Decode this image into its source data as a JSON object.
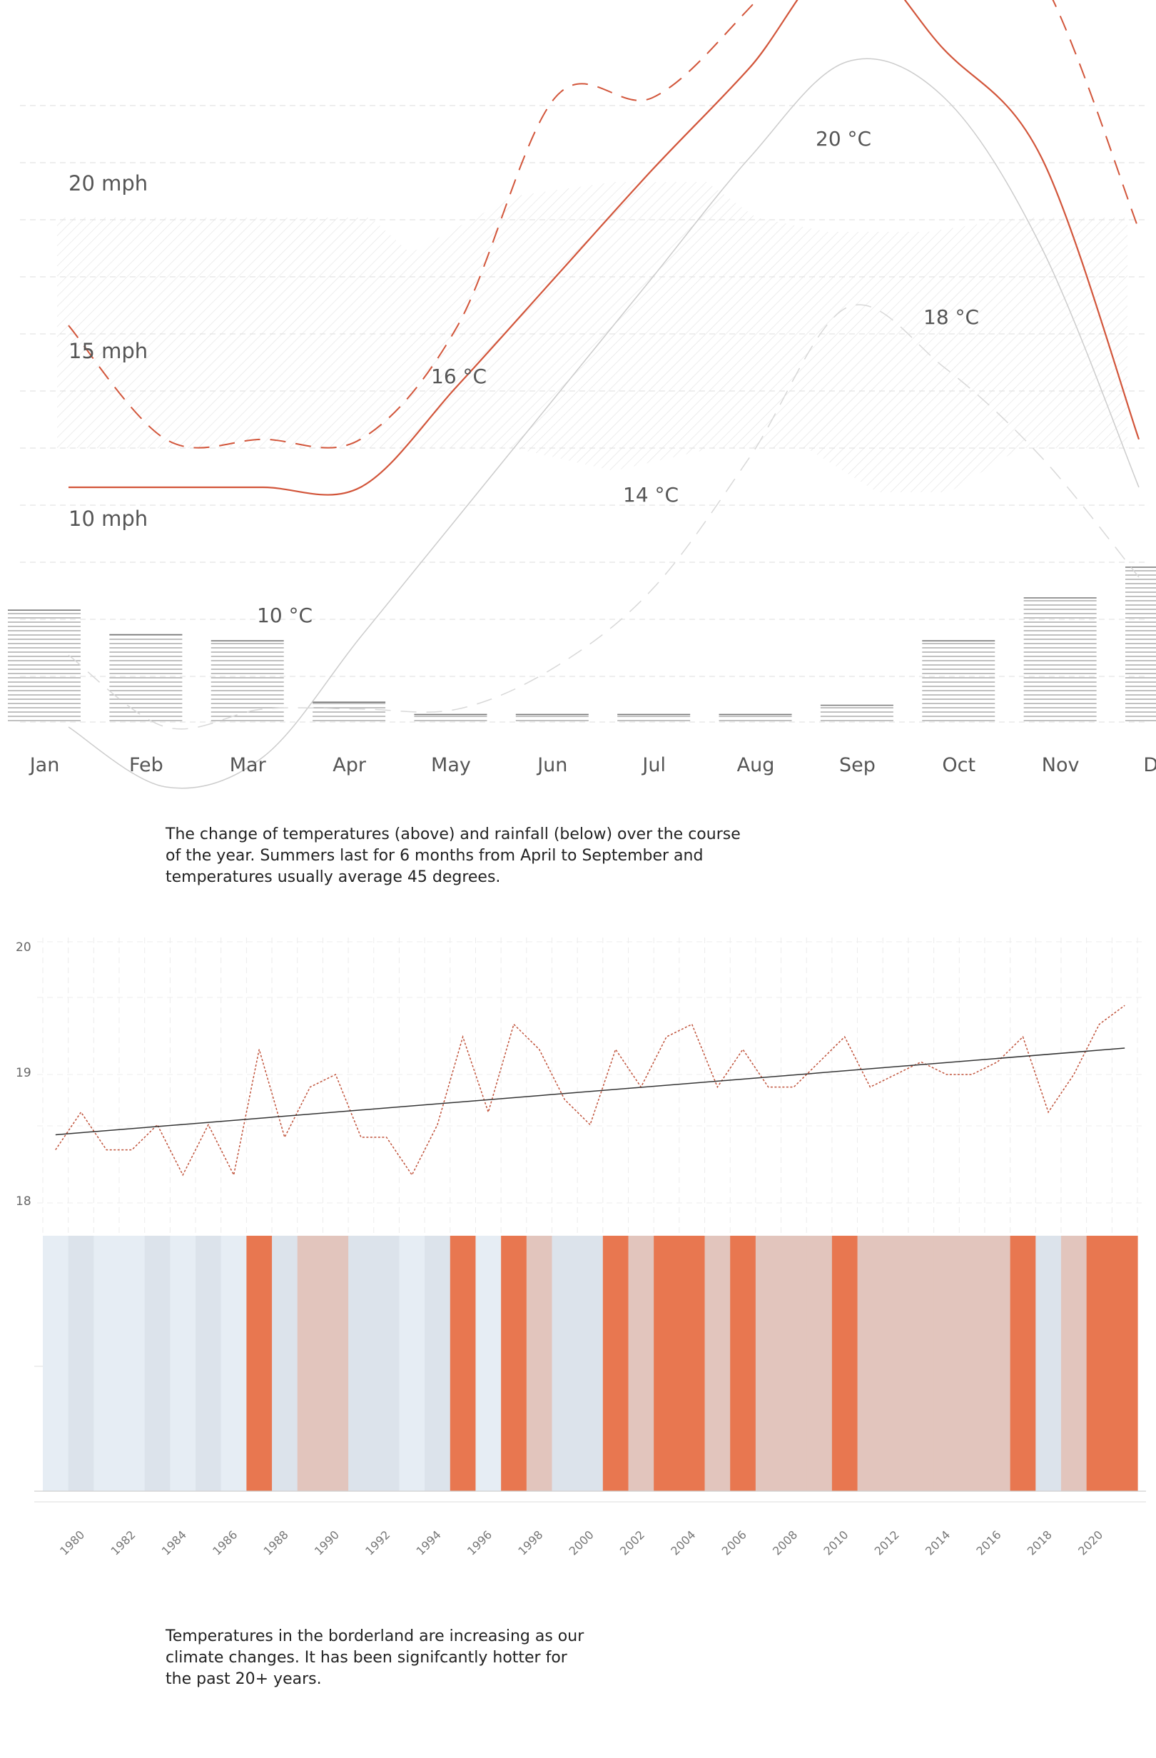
{
  "colors": {
    "accent": "#d2553a",
    "grey_line": "#cccccc",
    "grid": "#e4e4e4",
    "bars": "#9a9a9a",
    "stripe_hot": "#e87750",
    "stripe_warm": "#e2c5bd",
    "stripe_cool": "#dce3eb",
    "stripe_cold": "#e6edf4",
    "trend": "#333333",
    "anomaly_line": "#c0523a"
  },
  "chart_data": [
    {
      "type": "line",
      "months": [
        "Jan",
        "Feb",
        "Mar",
        "Apr",
        "May",
        "Jun",
        "Jul",
        "Aug",
        "Sep",
        "Oct",
        "Nov",
        "Dec"
      ],
      "wind_labels": [
        "20 mph",
        "15 mph",
        "10 mph"
      ],
      "temp_annotations": [
        "20 °C",
        "18 °C",
        "16 °C",
        "14 °C",
        "10 °C"
      ],
      "series": [
        {
          "style": "solid-accent",
          "values": [
            11.5,
            11.5,
            11.5,
            11.5,
            13.2,
            15.0,
            16.8,
            18.5,
            20.4,
            18.8,
            17.0,
            12.3
          ]
        },
        {
          "style": "dashed-accent",
          "values": [
            14.2,
            12.3,
            12.3,
            12.3,
            14.2,
            18.0,
            18.0,
            19.5,
            21.4,
            21.4,
            20.0,
            15.8
          ]
        },
        {
          "style": "solid-grey",
          "values": [
            7.5,
            6.5,
            7.0,
            9.0,
            11.0,
            13.0,
            15.0,
            17.0,
            18.6,
            18.0,
            15.5,
            11.5
          ]
        },
        {
          "style": "dashed-grey",
          "values": [
            8.7,
            7.5,
            7.8,
            7.8,
            7.8,
            8.5,
            9.8,
            12.0,
            14.5,
            13.5,
            12.0,
            10.0
          ]
        }
      ],
      "rainfall": [
        18,
        14,
        13,
        3,
        1,
        1,
        1,
        1,
        2.5,
        13,
        20,
        25
      ]
    },
    {
      "type": "line",
      "y_ticks": [
        "20",
        "19",
        "18"
      ],
      "ylim": [
        17.7,
        20
      ],
      "x": [
        1979,
        1980,
        1981,
        1982,
        1983,
        1984,
        1985,
        1986,
        1987,
        1988,
        1989,
        1990,
        1991,
        1992,
        1993,
        1994,
        1995,
        1996,
        1997,
        1998,
        1999,
        2000,
        2001,
        2002,
        2003,
        2004,
        2005,
        2006,
        2007,
        2008,
        2009,
        2010,
        2011,
        2012,
        2013,
        2014,
        2015,
        2016,
        2017,
        2018,
        2019,
        2020,
        2021
      ],
      "values": [
        18.4,
        18.7,
        18.4,
        18.4,
        18.6,
        18.2,
        18.6,
        18.2,
        19.2,
        18.5,
        18.9,
        19.0,
        18.5,
        18.5,
        18.2,
        18.6,
        19.3,
        18.7,
        19.4,
        19.2,
        18.8,
        18.6,
        19.2,
        18.9,
        19.3,
        19.4,
        18.9,
        19.2,
        18.9,
        18.9,
        19.1,
        19.3,
        18.9,
        19.0,
        19.1,
        19.0,
        19.0,
        19.1,
        19.3,
        18.7,
        19.0,
        19.4,
        19.55
      ],
      "trend": [
        [
          1979,
          18.52
        ],
        [
          2021,
          19.21
        ]
      ],
      "x_ticks": [
        "1980",
        "1982",
        "1984",
        "1986",
        "1988",
        "1990",
        "1992",
        "1994",
        "1996",
        "1998",
        "2000",
        "2002",
        "2004",
        "2006",
        "2008",
        "2010",
        "2012",
        "2014",
        "2016",
        "2018",
        "2020"
      ]
    },
    {
      "type": "heatmap",
      "x": [
        1979,
        1980,
        1981,
        1982,
        1983,
        1984,
        1985,
        1986,
        1987,
        1988,
        1989,
        1990,
        1991,
        1992,
        1993,
        1994,
        1995,
        1996,
        1997,
        1998,
        1999,
        2000,
        2001,
        2002,
        2003,
        2004,
        2005,
        2006,
        2007,
        2008,
        2009,
        2010,
        2011,
        2012,
        2013,
        2014,
        2015,
        2016,
        2017,
        2018,
        2019,
        2020,
        2021
      ],
      "classes": [
        "cold",
        "cool",
        "cold",
        "cold",
        "cool",
        "cold",
        "cool",
        "cold",
        "hot",
        "cool",
        "warm",
        "warm",
        "cool",
        "cool",
        "cold",
        "cool",
        "hot",
        "cold",
        "hot",
        "warm",
        "cool",
        "cool",
        "hot",
        "warm",
        "hot",
        "hot",
        "warm",
        "hot",
        "warm",
        "warm",
        "warm",
        "hot",
        "warm",
        "warm",
        "warm",
        "warm",
        "warm",
        "warm",
        "hot",
        "cool",
        "warm",
        "hot",
        "hot"
      ]
    }
  ],
  "captions": {
    "top": "The change of temperatures (above) and rainfall (below) over the course\nof the year. Summers last for 6 months from April to September and\ntemperatures usually average 45 degrees.",
    "bottom": "Temperatures in the borderland are increasing as our\nclimate changes. It has been signifcantly hotter for\nthe past 20+ years."
  }
}
